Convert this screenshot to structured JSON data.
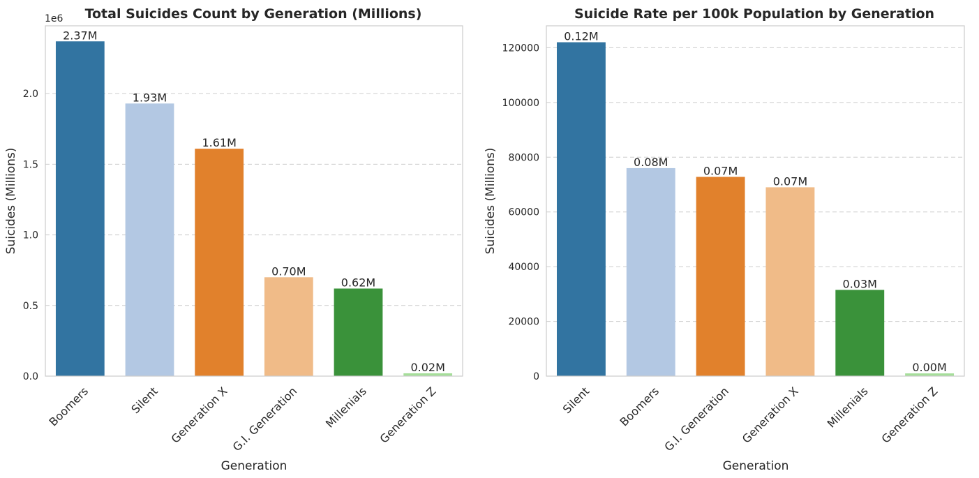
{
  "chart_data": [
    {
      "type": "bar",
      "title": "Total Suicides Count by Generation (Millions)",
      "xlabel": "Generation",
      "ylabel": "Suicides (Millions)",
      "y_offset_label": "1e6",
      "categories": [
        "Boomers",
        "Silent",
        "Generation X",
        "G.I. Generation",
        "Millenials",
        "Generation Z"
      ],
      "values": [
        2370000,
        1930000,
        1610000,
        700000,
        620000,
        20000
      ],
      "data_labels": [
        "2.37M",
        "1.93M",
        "1.61M",
        "0.70M",
        "0.62M",
        "0.02M"
      ],
      "colors": [
        "#3274a1",
        "#b3c8e3",
        "#e1812c",
        "#f0bb88",
        "#3a923a",
        "#a6de9a"
      ],
      "ylim": [
        0,
        2480000
      ],
      "yticks": [
        0,
        500000,
        1000000,
        1500000,
        2000000
      ],
      "ytick_labels": [
        "0.0",
        "0.5",
        "1.0",
        "1.5",
        "2.0"
      ],
      "grid": "y-dashed"
    },
    {
      "type": "bar",
      "title": "Suicide Rate per 100k Population by Generation",
      "xlabel": "Generation",
      "ylabel": "Suicides (Millions)",
      "categories": [
        "Silent",
        "Boomers",
        "G.I. Generation",
        "Generation X",
        "Millenials",
        "Generation Z"
      ],
      "values": [
        122000,
        76000,
        72800,
        69000,
        31500,
        1000
      ],
      "data_labels": [
        "0.12M",
        "0.08M",
        "0.07M",
        "0.07M",
        "0.03M",
        "0.00M"
      ],
      "colors": [
        "#3274a1",
        "#b3c8e3",
        "#e1812c",
        "#f0bb88",
        "#3a923a",
        "#a6de9a"
      ],
      "ylim": [
        0,
        128000
      ],
      "yticks": [
        0,
        20000,
        40000,
        60000,
        80000,
        100000,
        120000
      ],
      "ytick_labels": [
        "0",
        "20000",
        "40000",
        "60000",
        "80000",
        "100000",
        "120000"
      ],
      "grid": "y-dashed"
    }
  ]
}
